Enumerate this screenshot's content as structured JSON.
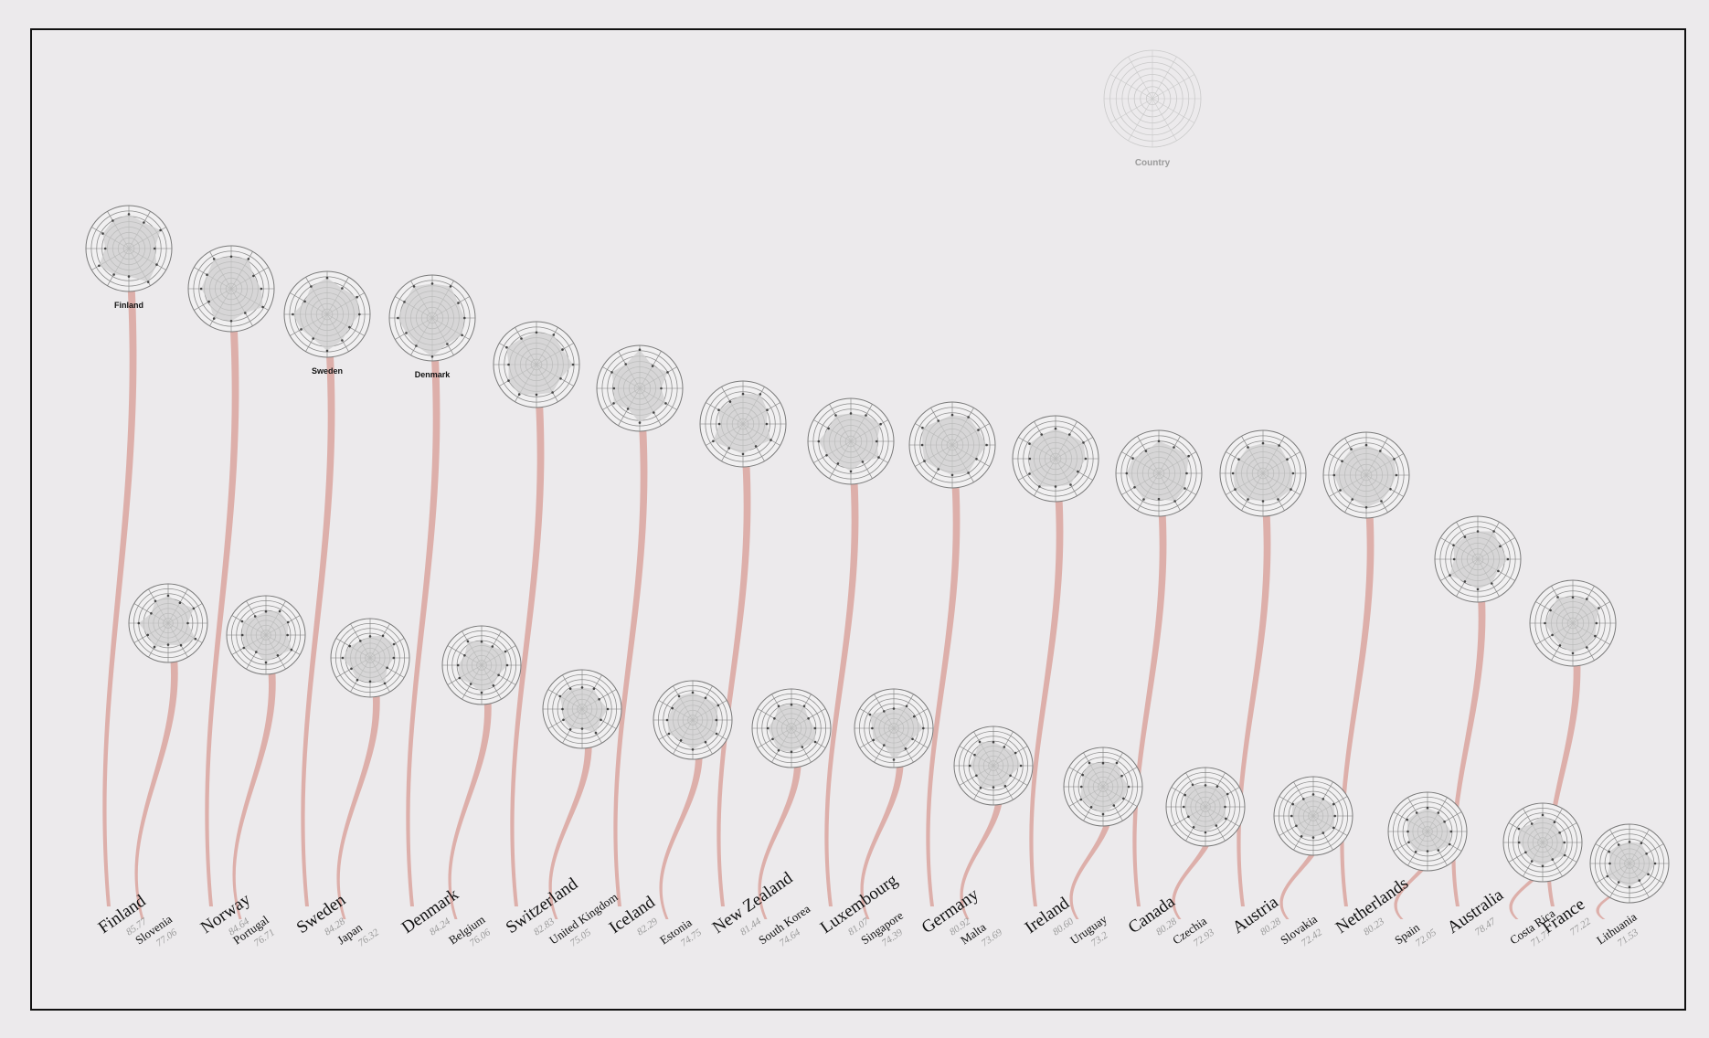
{
  "legend": {
    "label": "Country"
  },
  "chart_data": {
    "type": "radar-stems",
    "title": "",
    "axes_count": 12,
    "pairs": [
      {
        "main": {
          "name": "Finland",
          "score": "85.77",
          "top_label": "Finland",
          "values": [
            0.8,
            0.7,
            0.85,
            0.6,
            0.75,
            0.9,
            0.65,
            0.7,
            0.8,
            0.55,
            0.7,
            0.75
          ]
        },
        "sub": {
          "name": "Slovenia",
          "score": "77.06",
          "values": [
            0.7,
            0.6,
            0.75,
            0.5,
            0.8,
            0.65,
            0.55,
            0.7,
            0.6,
            0.75,
            0.5,
            0.65
          ]
        }
      },
      {
        "main": {
          "name": "Norway",
          "score": "84.64",
          "top_label": "",
          "values": [
            0.75,
            0.8,
            0.6,
            0.7,
            0.85,
            0.65,
            0.75,
            0.8,
            0.6,
            0.7,
            0.65,
            0.8
          ]
        },
        "sub": {
          "name": "Portugal",
          "score": "76.71",
          "values": [
            0.6,
            0.7,
            0.65,
            0.55,
            0.75,
            0.6,
            0.7,
            0.5,
            0.65,
            0.6,
            0.7,
            0.55
          ]
        }
      },
      {
        "main": {
          "name": "Sweden",
          "score": "84.28",
          "top_label": "Sweden",
          "values": [
            0.85,
            0.7,
            0.8,
            0.75,
            0.6,
            0.7,
            0.85,
            0.65,
            0.7,
            0.8,
            0.6,
            0.75
          ]
        },
        "sub": {
          "name": "Japan",
          "score": "76.32",
          "values": [
            0.55,
            0.65,
            0.7,
            0.6,
            0.5,
            0.75,
            0.6,
            0.65,
            0.55,
            0.7,
            0.6,
            0.5
          ]
        }
      },
      {
        "main": {
          "name": "Denmark",
          "score": "84.24",
          "top_label": "Denmark",
          "values": [
            0.8,
            0.85,
            0.7,
            0.75,
            0.8,
            0.7,
            0.9,
            0.75,
            0.7,
            0.8,
            0.75,
            0.85
          ]
        },
        "sub": {
          "name": "Belgium",
          "score": "76.06",
          "values": [
            0.6,
            0.55,
            0.7,
            0.65,
            0.5,
            0.6,
            0.7,
            0.55,
            0.65,
            0.6,
            0.5,
            0.7
          ]
        }
      },
      {
        "main": {
          "name": "Switzerland",
          "score": "82.83",
          "top_label": "",
          "values": [
            0.75,
            0.8,
            0.7,
            0.85,
            0.65,
            0.75,
            0.7,
            0.8,
            0.75,
            0.65,
            0.8,
            0.7
          ]
        },
        "sub": {
          "name": "United Kingdom",
          "score": "75.05",
          "values": [
            0.55,
            0.6,
            0.5,
            0.65,
            0.55,
            0.7,
            0.5,
            0.6,
            0.55,
            0.5,
            0.65,
            0.6
          ]
        }
      },
      {
        "main": {
          "name": "Iceland",
          "score": "82.29",
          "top_label": "",
          "values": [
            0.9,
            0.6,
            0.75,
            0.5,
            0.7,
            0.65,
            0.8,
            0.55,
            0.7,
            0.6,
            0.75,
            0.65
          ]
        },
        "sub": {
          "name": "Estonia",
          "score": "74.75",
          "values": [
            0.7,
            0.65,
            0.75,
            0.6,
            0.7,
            0.65,
            0.75,
            0.6,
            0.7,
            0.65,
            0.6,
            0.7
          ]
        }
      },
      {
        "main": {
          "name": "New Zealand",
          "score": "81.44",
          "top_label": "",
          "values": [
            0.7,
            0.8,
            0.65,
            0.55,
            0.75,
            0.6,
            0.7,
            0.65,
            0.8,
            0.55,
            0.65,
            0.6
          ]
        },
        "sub": {
          "name": "South Korea",
          "score": "74.64",
          "values": [
            0.6,
            0.65,
            0.5,
            0.6,
            0.7,
            0.55,
            0.6,
            0.65,
            0.55,
            0.6,
            0.5,
            0.65
          ]
        }
      },
      {
        "main": {
          "name": "Luxembourg",
          "score": "81.07",
          "top_label": "",
          "values": [
            0.65,
            0.7,
            0.8,
            0.6,
            0.75,
            0.55,
            0.7,
            0.6,
            0.65,
            0.75,
            0.6,
            0.7
          ]
        },
        "sub": {
          "name": "Singapore",
          "score": "74.39",
          "values": [
            0.5,
            0.65,
            0.6,
            0.75,
            0.55,
            0.6,
            0.8,
            0.5,
            0.6,
            0.55,
            0.7,
            0.5
          ]
        }
      },
      {
        "main": {
          "name": "Germany",
          "score": "80.92",
          "top_label": "",
          "values": [
            0.7,
            0.75,
            0.7,
            0.8,
            0.65,
            0.75,
            0.7,
            0.65,
            0.75,
            0.7,
            0.8,
            0.65
          ]
        },
        "sub": {
          "name": "Malta",
          "score": "73.69",
          "values": [
            0.6,
            0.55,
            0.65,
            0.7,
            0.5,
            0.6,
            0.55,
            0.65,
            0.5,
            0.6,
            0.55,
            0.7
          ]
        }
      },
      {
        "main": {
          "name": "Ireland",
          "score": "80.60",
          "top_label": "",
          "values": [
            0.7,
            0.65,
            0.75,
            0.7,
            0.6,
            0.7,
            0.65,
            0.75,
            0.7,
            0.6,
            0.7,
            0.65
          ]
        },
        "sub": {
          "name": "Uruguay",
          "score": "73.2",
          "values": [
            0.6,
            0.7,
            0.55,
            0.65,
            0.6,
            0.55,
            0.7,
            0.6,
            0.65,
            0.55,
            0.6,
            0.7
          ]
        }
      },
      {
        "main": {
          "name": "Canada",
          "score": "80.28",
          "top_label": "",
          "values": [
            0.75,
            0.7,
            0.8,
            0.65,
            0.7,
            0.75,
            0.6,
            0.7,
            0.65,
            0.75,
            0.7,
            0.6
          ]
        },
        "sub": {
          "name": "Czechia",
          "score": "72.93",
          "values": [
            0.55,
            0.6,
            0.65,
            0.5,
            0.6,
            0.55,
            0.65,
            0.6,
            0.5,
            0.55,
            0.6,
            0.65
          ]
        }
      },
      {
        "main": {
          "name": "Austria",
          "score": "80.28",
          "top_label": "",
          "values": [
            0.7,
            0.75,
            0.65,
            0.7,
            0.75,
            0.7,
            0.65,
            0.7,
            0.75,
            0.7,
            0.65,
            0.7
          ]
        },
        "sub": {
          "name": "Slovakia",
          "score": "72.42",
          "values": [
            0.55,
            0.5,
            0.6,
            0.55,
            0.6,
            0.5,
            0.55,
            0.6,
            0.5,
            0.55,
            0.6,
            0.5
          ]
        }
      },
      {
        "main": {
          "name": "Netherlands",
          "score": "80.23",
          "top_label": "",
          "values": [
            0.7,
            0.65,
            0.75,
            0.7,
            0.65,
            0.7,
            0.75,
            0.65,
            0.7,
            0.75,
            0.65,
            0.7
          ]
        },
        "sub": {
          "name": "Spain",
          "score": "72.05",
          "values": [
            0.6,
            0.55,
            0.5,
            0.6,
            0.65,
            0.55,
            0.5,
            0.6,
            0.55,
            0.5,
            0.6,
            0.55
          ]
        }
      },
      {
        "main": {
          "name": "Australia",
          "score": "78.47",
          "top_label": "",
          "values": [
            0.65,
            0.75,
            0.6,
            0.7,
            0.55,
            0.65,
            0.7,
            0.6,
            0.75,
            0.55,
            0.65,
            0.6
          ]
        },
        "sub": {
          "name": "Costa Rica",
          "score": "71.77",
          "values": [
            0.7,
            0.6,
            0.5,
            0.55,
            0.65,
            0.5,
            0.6,
            0.55,
            0.5,
            0.6,
            0.7,
            0.55
          ]
        }
      },
      {
        "main": {
          "name": "France",
          "score": "77.22",
          "top_label": "",
          "values": [
            0.6,
            0.65,
            0.7,
            0.55,
            0.6,
            0.65,
            0.7,
            0.6,
            0.55,
            0.65,
            0.6,
            0.7
          ]
        },
        "sub": {
          "name": "Lithuania",
          "score": "71.53",
          "values": [
            0.55,
            0.6,
            0.5,
            0.65,
            0.55,
            0.5,
            0.6,
            0.55,
            0.65,
            0.5,
            0.6,
            0.55
          ]
        }
      }
    ]
  }
}
